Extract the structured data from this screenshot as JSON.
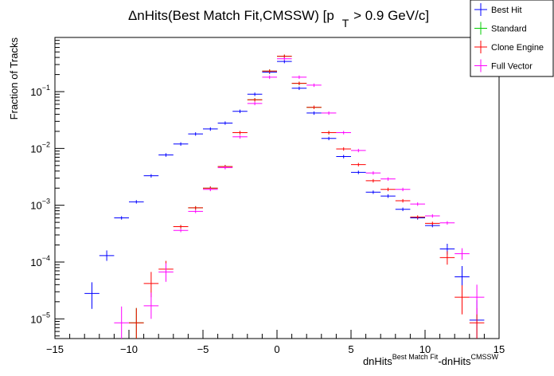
{
  "chart_data": {
    "type": "scatter",
    "title": {
      "prefix": "ΔnHits(Best Match Fit,CMSSW) [p",
      "subscript": "T",
      "suffix": " > 0.9 GeV/c]"
    },
    "ylabel": "Fraction of Tracks",
    "xlabel": {
      "base1": "dnHits",
      "sup1": "Best Match Fit",
      "base2": "-dnHits",
      "sup2": "CMSSW"
    },
    "x_range": [
      -15,
      15
    ],
    "y_range": [
      4.5e-06,
      0.9
    ],
    "y_scale": "log",
    "x_ticks": [
      -15,
      -10,
      -5,
      0,
      5,
      10,
      15
    ],
    "x_tick_labels": [
      "−15",
      "−10",
      "−5",
      "0",
      "5",
      "10",
      "15"
    ],
    "y_ticks": [
      {
        "value": 1e-05,
        "base": "10",
        "exp": "−5"
      },
      {
        "value": 0.0001,
        "base": "10",
        "exp": "−4"
      },
      {
        "value": 0.001,
        "base": "10",
        "exp": "−3"
      },
      {
        "value": 0.01,
        "base": "10",
        "exp": "−2"
      },
      {
        "value": 0.1,
        "base": "10",
        "exp": "−1"
      }
    ],
    "grid": false,
    "legend_position": "top-right",
    "series": [
      {
        "name": "Best Hit",
        "color": "#0000ff",
        "points": [
          {
            "x": -12.5,
            "y": 2.8e-05,
            "ey": [
              1.3e-05,
              1.6e-05
            ]
          },
          {
            "x": -11.5,
            "y": 0.00013,
            "ey": [
              2.5e-05,
              3e-05
            ]
          },
          {
            "x": -10.5,
            "y": 0.0006
          },
          {
            "x": -9.5,
            "y": 0.00115
          },
          {
            "x": -8.5,
            "y": 0.0033
          },
          {
            "x": -7.5,
            "y": 0.0077
          },
          {
            "x": -6.5,
            "y": 0.012
          },
          {
            "x": -5.5,
            "y": 0.018
          },
          {
            "x": -4.5,
            "y": 0.022
          },
          {
            "x": -3.5,
            "y": 0.028
          },
          {
            "x": -2.5,
            "y": 0.045
          },
          {
            "x": -1.5,
            "y": 0.09
          },
          {
            "x": -0.5,
            "y": 0.22
          },
          {
            "x": 0.5,
            "y": 0.34
          },
          {
            "x": 1.5,
            "y": 0.115
          },
          {
            "x": 2.5,
            "y": 0.042
          },
          {
            "x": 3.5,
            "y": 0.015
          },
          {
            "x": 4.5,
            "y": 0.0072
          },
          {
            "x": 5.5,
            "y": 0.0038
          },
          {
            "x": 6.5,
            "y": 0.0017
          },
          {
            "x": 7.5,
            "y": 0.00145
          },
          {
            "x": 8.5,
            "y": 0.00085
          },
          {
            "x": 9.5,
            "y": 0.0006
          },
          {
            "x": 10.5,
            "y": 0.00044
          },
          {
            "x": 11.5,
            "y": 0.00017,
            "ey": [
              3.5e-05,
              4e-05
            ]
          },
          {
            "x": 12.5,
            "y": 5.5e-05,
            "ey": [
              2.3e-05,
              3e-05
            ]
          },
          {
            "x": 13.5,
            "y": 9.5e-06,
            "ey": [
              5e-06,
              1.2e-05
            ]
          }
        ]
      },
      {
        "name": "Standard",
        "color": "#00cc00",
        "points": [
          {
            "x": -9.5,
            "y": 8.5e-06,
            "ey": [
              4e-06,
              7e-06
            ]
          },
          {
            "x": -6.5,
            "y": 0.00042
          },
          {
            "x": -5.5,
            "y": 0.0009
          },
          {
            "x": -4.5,
            "y": 0.002
          },
          {
            "x": -3.5,
            "y": 0.0048
          },
          {
            "x": -2.5,
            "y": 0.019
          },
          {
            "x": -1.5,
            "y": 0.072
          },
          {
            "x": -0.5,
            "y": 0.23
          },
          {
            "x": 0.5,
            "y": 0.42
          },
          {
            "x": 1.5,
            "y": 0.14
          },
          {
            "x": 2.5,
            "y": 0.053
          },
          {
            "x": 3.5,
            "y": 0.019
          }
        ]
      },
      {
        "name": "Clone Engine",
        "color": "#ff0000",
        "points": [
          {
            "x": -9.5,
            "y": 8.5e-06,
            "ey": [
              4e-06,
              7e-06
            ]
          },
          {
            "x": -8.5,
            "y": 4.2e-05,
            "ey": [
              1.8e-05,
              2.5e-05
            ]
          },
          {
            "x": -7.5,
            "y": 7.5e-05,
            "ey": [
              2.5e-05,
              3e-05
            ]
          },
          {
            "x": -6.5,
            "y": 0.00042
          },
          {
            "x": -5.5,
            "y": 0.0009
          },
          {
            "x": -4.5,
            "y": 0.002
          },
          {
            "x": -3.5,
            "y": 0.0048
          },
          {
            "x": -2.5,
            "y": 0.019
          },
          {
            "x": -1.5,
            "y": 0.072
          },
          {
            "x": -0.5,
            "y": 0.23
          },
          {
            "x": 0.5,
            "y": 0.42
          },
          {
            "x": 1.5,
            "y": 0.14
          },
          {
            "x": 2.5,
            "y": 0.053
          },
          {
            "x": 3.5,
            "y": 0.019
          },
          {
            "x": 4.5,
            "y": 0.0098
          },
          {
            "x": 5.5,
            "y": 0.0052
          },
          {
            "x": 6.5,
            "y": 0.0027
          },
          {
            "x": 7.5,
            "y": 0.0019
          },
          {
            "x": 8.5,
            "y": 0.0012
          },
          {
            "x": 9.5,
            "y": 0.00062
          },
          {
            "x": 10.5,
            "y": 0.00048
          },
          {
            "x": 11.5,
            "y": 0.00012,
            "ey": [
              3e-05,
              3.5e-05
            ]
          },
          {
            "x": 12.5,
            "y": 2.4e-05,
            "ey": [
              1.2e-05,
              1.5e-05
            ]
          },
          {
            "x": 13.5,
            "y": 8.5e-06,
            "ey": [
              4e-06,
              7e-06
            ]
          }
        ]
      },
      {
        "name": "Full Vector",
        "color": "#ff00ff",
        "points": [
          {
            "x": -10.5,
            "y": 8.5e-06,
            "ey": [
              4e-06,
              8e-06
            ]
          },
          {
            "x": -8.5,
            "y": 1.7e-05,
            "ey": [
              7e-06,
              1.2e-05
            ]
          },
          {
            "x": -7.5,
            "y": 6.7e-05,
            "ey": [
              2.2e-05,
              2.8e-05
            ]
          },
          {
            "x": -6.5,
            "y": 0.00036
          },
          {
            "x": -5.5,
            "y": 0.00078
          },
          {
            "x": -4.5,
            "y": 0.0019
          },
          {
            "x": -3.5,
            "y": 0.0046
          },
          {
            "x": -2.5,
            "y": 0.016
          },
          {
            "x": -1.5,
            "y": 0.062
          },
          {
            "x": -0.5,
            "y": 0.18
          },
          {
            "x": 0.5,
            "y": 0.38
          },
          {
            "x": 1.5,
            "y": 0.18
          },
          {
            "x": 2.5,
            "y": 0.13
          },
          {
            "x": 3.5,
            "y": 0.042
          },
          {
            "x": 4.5,
            "y": 0.019
          },
          {
            "x": 5.5,
            "y": 0.0092
          },
          {
            "x": 6.5,
            "y": 0.0037
          },
          {
            "x": 7.5,
            "y": 0.0029
          },
          {
            "x": 8.5,
            "y": 0.0019
          },
          {
            "x": 9.5,
            "y": 0.00105
          },
          {
            "x": 10.5,
            "y": 0.00065
          },
          {
            "x": 11.5,
            "y": 0.00049
          },
          {
            "x": 12.5,
            "y": 0.00014,
            "ey": [
              3e-05,
              3.5e-05
            ]
          },
          {
            "x": 13.5,
            "y": 2.4e-05,
            "ey": [
              1.2e-05,
              1.6e-05
            ]
          }
        ]
      }
    ]
  }
}
